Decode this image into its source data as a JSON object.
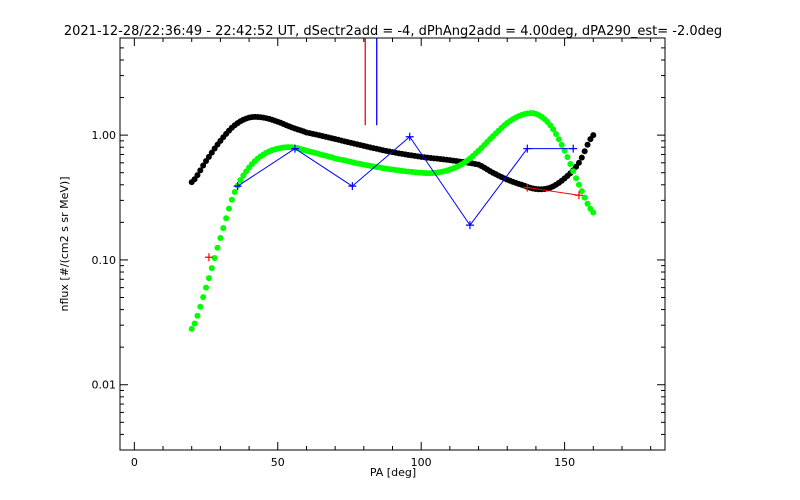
{
  "chart_data": {
    "type": "scatter",
    "title": "2021-12-28/22:36:49 - 22:42:52 UT, dSectr2add = -4, dPhAng2add = 4.00deg, dPA290_est=  -2.0deg",
    "xlabel": "PA [deg]",
    "ylabel": "nflux [#/(cm2 s sr MeV)]",
    "xlim": [
      -5,
      185
    ],
    "ylim": [
      0.003,
      6
    ],
    "yscale": "log",
    "x_ticks": [
      0,
      50,
      100,
      150
    ],
    "x_tick_labels": [
      "0",
      "50",
      "100",
      "150"
    ],
    "y_ticks": [
      0.01,
      0.1,
      1.0
    ],
    "y_tick_labels": [
      "0.01",
      "0.10",
      "1.00"
    ],
    "grid": false,
    "legend": "none",
    "vertical_markers": [
      {
        "x": 80.5,
        "color": "#ff0000",
        "y_top": 6,
        "y_bottom": 1.2
      },
      {
        "x": 84.5,
        "color": "#0000ff",
        "y_top": 6,
        "y_bottom": 1.2
      }
    ],
    "series": [
      {
        "style": "dots",
        "color": "#000000",
        "x": [
          20,
          25,
          30,
          35,
          40,
          45,
          50,
          55,
          60,
          70,
          80,
          90,
          100,
          110,
          120,
          125,
          130,
          135,
          140,
          145,
          150,
          155,
          160
        ],
        "y": [
          0.42,
          0.62,
          0.9,
          1.2,
          1.38,
          1.38,
          1.28,
          1.15,
          1.05,
          0.93,
          0.82,
          0.73,
          0.67,
          0.63,
          0.58,
          0.5,
          0.44,
          0.4,
          0.37,
          0.38,
          0.45,
          0.6,
          1.0
        ]
      },
      {
        "style": "dots",
        "color": "#00ff00",
        "x": [
          20,
          25,
          30,
          35,
          40,
          45,
          50,
          55,
          60,
          65,
          70,
          80,
          90,
          100,
          105,
          110,
          115,
          120,
          125,
          130,
          135,
          140,
          145,
          150,
          155,
          160
        ],
        "y": [
          0.028,
          0.06,
          0.15,
          0.35,
          0.55,
          0.7,
          0.78,
          0.8,
          0.75,
          0.7,
          0.65,
          0.58,
          0.53,
          0.5,
          0.5,
          0.53,
          0.6,
          0.75,
          0.98,
          1.25,
          1.45,
          1.48,
          1.2,
          0.75,
          0.4,
          0.24
        ]
      },
      {
        "style": "line+plus",
        "color": "#0000ff",
        "x": [
          36,
          56,
          76,
          96,
          117,
          137,
          153
        ],
        "y": [
          0.39,
          0.78,
          0.39,
          0.97,
          0.19,
          0.78,
          0.78
        ]
      },
      {
        "style": "line+plus",
        "color": "#ff0000",
        "x": [
          26,
          137,
          155
        ],
        "y": [
          0.105,
          0.38,
          0.33
        ],
        "segments": [
          [
            1,
            2
          ]
        ]
      }
    ]
  }
}
